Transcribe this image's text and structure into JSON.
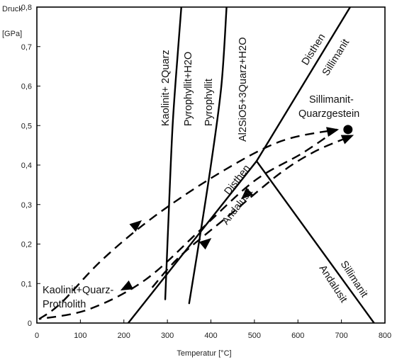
{
  "chart_data": {
    "type": "line",
    "title": "",
    "xlabel": "Temperatur [°C]",
    "ylabel_line1": "Druck",
    "ylabel_line2": "[GPa]",
    "xlim": [
      0,
      800
    ],
    "ylim": [
      0,
      0.8
    ],
    "x_ticks": [
      "0",
      "100",
      "200",
      "300",
      "400",
      "500",
      "600",
      "700",
      "800"
    ],
    "y_ticks": [
      "0",
      "0,1",
      "0,2",
      "0,3",
      "0,4",
      "0,5",
      "0,6",
      "0,7",
      "0,8"
    ],
    "grid": false,
    "series": [
      {
        "points": [
          [
            295,
            0.06
          ],
          [
            302,
            0.25
          ],
          [
            312,
            0.5
          ],
          [
            325,
            0.7
          ],
          [
            332,
            0.8
          ]
        ]
      },
      {
        "points": [
          [
            350,
            0.05
          ],
          [
            372,
            0.2
          ],
          [
            400,
            0.4
          ],
          [
            424,
            0.6
          ],
          [
            436,
            0.8
          ]
        ]
      },
      {
        "points": [
          [
            210,
            0.0
          ],
          [
            505,
            0.41
          ],
          [
            720,
            0.8
          ]
        ]
      },
      {
        "points": [
          [
            505,
            0.41
          ],
          [
            775,
            0.0
          ]
        ]
      }
    ],
    "paths": [
      {
        "points": [
          [
            5,
            0.01
          ],
          [
            55,
            0.05
          ],
          [
            150,
            0.16
          ],
          [
            270,
            0.27
          ],
          [
            420,
            0.38
          ],
          [
            560,
            0.46
          ],
          [
            690,
            0.49
          ]
        ],
        "arrows_at": [
          [
            230,
            0.25
          ],
          [
            680,
            0.487
          ]
        ]
      },
      {
        "points": [
          [
            690,
            0.49
          ],
          [
            610,
            0.43
          ],
          [
            500,
            0.36
          ],
          [
            380,
            0.24
          ],
          [
            250,
            0.11
          ],
          [
            120,
            0.035
          ],
          [
            5,
            0.01
          ]
        ],
        "arrows_at": [
          [
            205,
            0.09
          ],
          [
            480,
            0.324
          ]
        ]
      },
      {
        "points": [
          [
            265,
            0.09
          ],
          [
            330,
            0.17
          ],
          [
            450,
            0.28
          ],
          [
            560,
            0.38
          ],
          [
            640,
            0.435
          ],
          [
            715,
            0.47
          ]
        ],
        "arrows_at": [
          [
            390,
            0.205
          ],
          [
            715,
            0.47
          ]
        ]
      }
    ],
    "endpoint": [
      715,
      0.49
    ],
    "labels": {
      "kaolinit_quarz": "Kaolinit+ 2Quarz",
      "pyrophyllit_h2o": "Pyrophyllit+H2O",
      "pyrophyllit": "Pyrophyllit",
      "al2sio5": "Al2SiO5+3Quarz+H2O",
      "disthen_top": "Disthen",
      "sillimanit_top": "Sillimanit",
      "disthen_mid": "Disthen",
      "andalusit_mid": "Andalusit",
      "sillimanit_low": "Sillimanit",
      "andalusit_low": "Andalusit",
      "endpoint_1": "Sillimanit-",
      "endpoint_2": "Quarzgestein",
      "start_1": "Kaolinit+Quarz-",
      "start_2": "Protholith"
    }
  }
}
